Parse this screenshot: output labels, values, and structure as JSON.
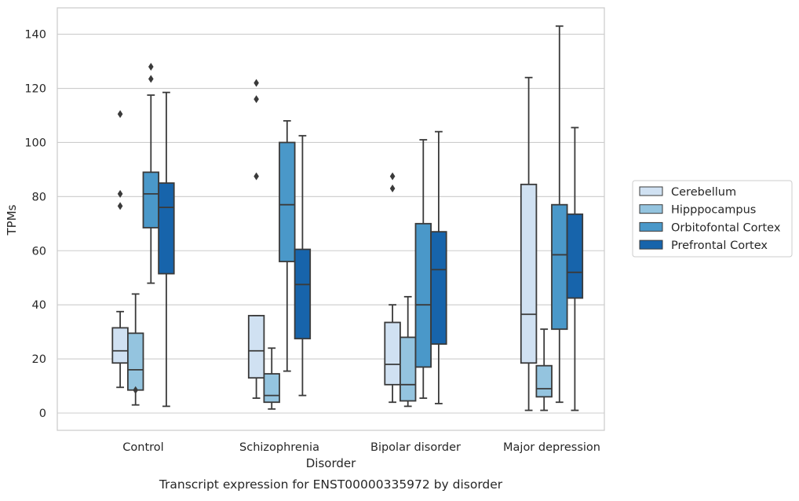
{
  "chart_data": {
    "type": "box",
    "caption": "Transcript expression for ENST00000335972 by disorder",
    "xlabel": "Disorder",
    "ylabel": "TPMs",
    "ylim": [
      -6.5,
      150
    ],
    "yticks": [
      0,
      20,
      40,
      60,
      80,
      100,
      120,
      140
    ],
    "grid": true,
    "legend_position": "right",
    "categories": [
      "Control",
      "Schizophrenia",
      "Bipolar disorder",
      "Major depression"
    ],
    "series": [
      {
        "name": "Cerebellum",
        "color": "#d0e1f2",
        "boxes": [
          {
            "whislo": 9.5,
            "q1": 18.5,
            "med": 23,
            "q3": 31.5,
            "whishi": 37.5,
            "fliers": [
              76.5,
              81,
              110.5
            ]
          },
          {
            "whislo": 5.5,
            "q1": 13,
            "med": 23,
            "q3": 36,
            "whishi": 36,
            "fliers": [
              87.5,
              116,
              122
            ]
          },
          {
            "whislo": 4,
            "q1": 10.5,
            "med": 18,
            "q3": 33.5,
            "whishi": 40,
            "fliers": [
              83,
              87.5
            ]
          },
          {
            "whislo": 1,
            "q1": 18.5,
            "med": 36.5,
            "q3": 84.5,
            "whishi": 124,
            "fliers": []
          }
        ]
      },
      {
        "name": "Hipppocampus",
        "color": "#94c4df",
        "boxes": [
          {
            "whislo": 3,
            "q1": 8.5,
            "med": 16,
            "q3": 29.5,
            "whishi": 44,
            "fliers": [
              8.5
            ]
          },
          {
            "whislo": 1.5,
            "q1": 4,
            "med": 6.5,
            "q3": 14.5,
            "whishi": 24,
            "fliers": []
          },
          {
            "whislo": 2.5,
            "q1": 4.5,
            "med": 10.5,
            "q3": 28,
            "whishi": 43,
            "fliers": []
          },
          {
            "whislo": 1,
            "q1": 6,
            "med": 9,
            "q3": 17.5,
            "whishi": 31,
            "fliers": []
          }
        ]
      },
      {
        "name": "Orbitofontal Cortex",
        "color": "#4a98c9",
        "boxes": [
          {
            "whislo": 48,
            "q1": 68.5,
            "med": 81,
            "q3": 89,
            "whishi": 117.5,
            "fliers": [
              123.5,
              128
            ]
          },
          {
            "whislo": 15.5,
            "q1": 56,
            "med": 77,
            "q3": 100,
            "whishi": 108,
            "fliers": []
          },
          {
            "whislo": 5.5,
            "q1": 17,
            "med": 40,
            "q3": 70,
            "whishi": 101,
            "fliers": []
          },
          {
            "whislo": 4,
            "q1": 31,
            "med": 58.5,
            "q3": 77,
            "whishi": 143,
            "fliers": []
          }
        ]
      },
      {
        "name": "Prefrontal Cortex",
        "color": "#1764ab",
        "boxes": [
          {
            "whislo": 2.5,
            "q1": 51.5,
            "med": 76,
            "q3": 85,
            "whishi": 118.5,
            "fliers": []
          },
          {
            "whislo": 6.5,
            "q1": 27.5,
            "med": 47.5,
            "q3": 60.5,
            "whishi": 102.5,
            "fliers": []
          },
          {
            "whislo": 3.5,
            "q1": 25.5,
            "med": 53,
            "q3": 67,
            "whishi": 104,
            "fliers": []
          },
          {
            "whislo": 1,
            "q1": 42.5,
            "med": 52,
            "q3": 73.5,
            "whishi": 105.5,
            "fliers": []
          }
        ]
      }
    ]
  }
}
